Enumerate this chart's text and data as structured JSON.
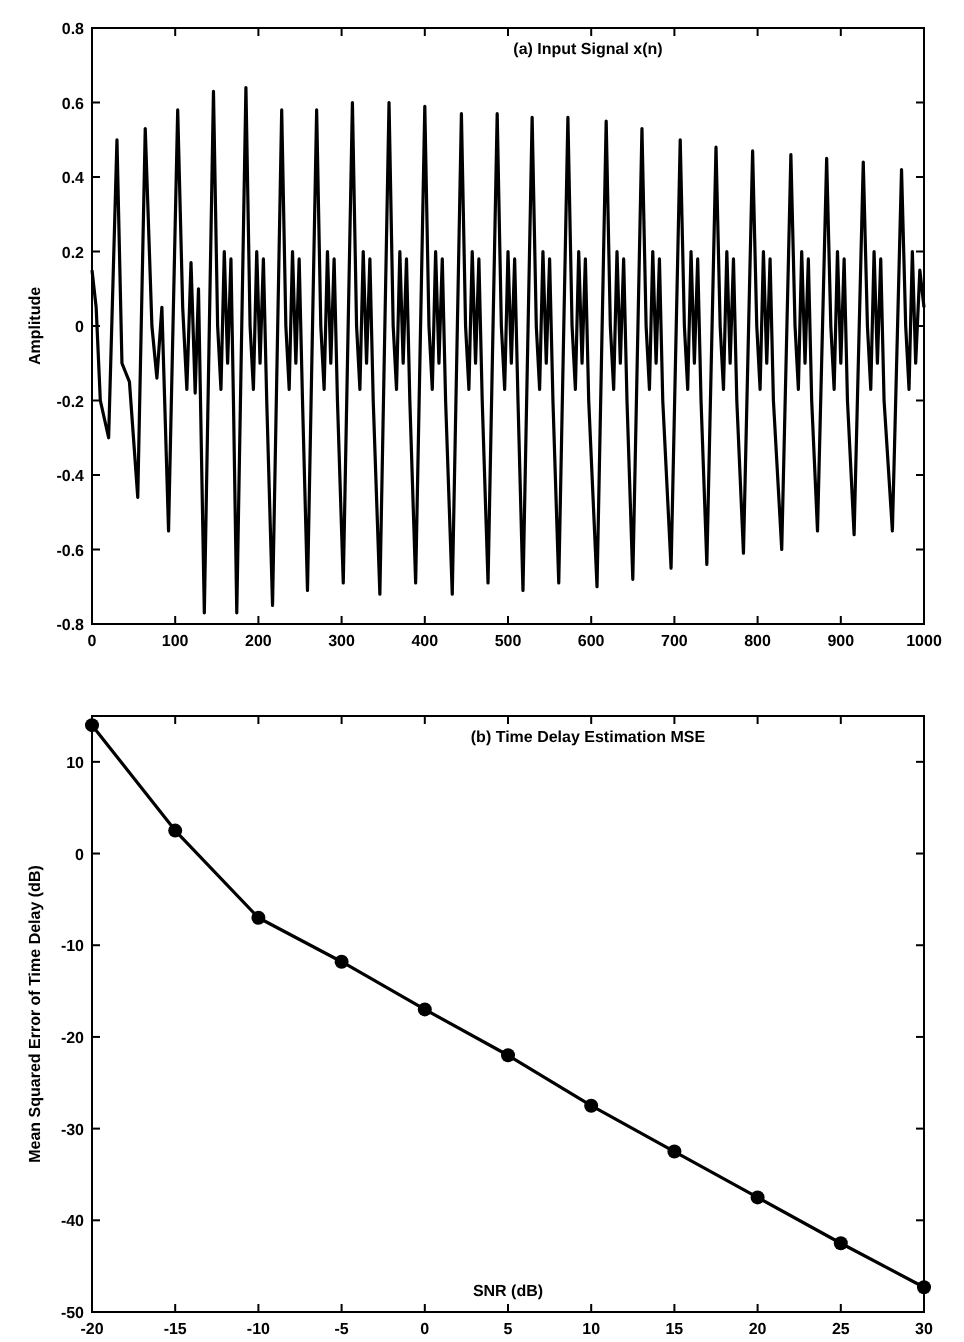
{
  "chart_data": [
    {
      "type": "line",
      "title": "(a) Input Signal x(n)",
      "ylabel": "Amplitude",
      "xlim": [
        0,
        1000
      ],
      "ylim": [
        -0.8,
        0.8
      ],
      "xticks": [
        0,
        100,
        200,
        300,
        400,
        500,
        600,
        700,
        800,
        900,
        1000
      ],
      "yticks": [
        -0.8,
        -0.6,
        -0.4,
        -0.2,
        0,
        0.2,
        0.4,
        0.6,
        0.8
      ],
      "marker": "none",
      "series": [
        {
          "color": "#000000",
          "x": [
            0,
            5,
            10,
            20,
            30,
            36,
            45,
            55,
            64,
            72,
            78,
            84,
            92,
            103,
            109,
            114,
            119,
            124,
            128,
            135,
            146,
            151,
            155,
            159,
            163,
            167,
            170,
            174,
            185,
            190,
            194,
            198,
            202,
            206,
            210,
            217,
            228,
            233,
            237,
            241,
            245,
            249,
            253,
            259,
            270,
            275,
            279,
            283,
            287,
            291,
            295,
            302,
            313,
            318,
            322,
            326,
            330,
            334,
            338,
            346,
            357,
            362,
            366,
            370,
            374,
            378,
            382,
            389,
            400,
            405,
            409,
            413,
            417,
            421,
            425,
            433,
            444,
            449,
            453,
            457,
            461,
            465,
            469,
            476,
            487,
            492,
            496,
            500,
            504,
            508,
            512,
            518,
            529,
            534,
            538,
            542,
            546,
            550,
            554,
            561,
            572,
            577,
            581,
            585,
            589,
            593,
            597,
            607,
            618,
            623,
            627,
            631,
            635,
            639,
            643,
            650,
            661,
            666,
            670,
            674,
            678,
            682,
            686,
            696,
            707,
            712,
            716,
            720,
            724,
            728,
            732,
            739,
            750,
            755,
            759,
            763,
            767,
            771,
            775,
            783,
            794,
            799,
            803,
            807,
            811,
            815,
            819,
            829,
            840,
            845,
            849,
            853,
            857,
            861,
            865,
            872,
            883,
            888,
            892,
            896,
            900,
            904,
            908,
            916,
            927,
            932,
            936,
            940,
            944,
            948,
            952,
            962,
            973,
            978,
            982,
            986,
            990,
            995,
            1000
          ],
          "values": [
            0.15,
            0.05,
            -0.2,
            -0.3,
            0.5,
            -0.1,
            -0.15,
            -0.46,
            0.53,
            0.0,
            -0.14,
            0.05,
            -0.55,
            0.58,
            0.05,
            -0.17,
            0.17,
            -0.18,
            0.1,
            -0.77,
            0.63,
            0.0,
            -0.17,
            0.2,
            -0.1,
            0.18,
            -0.2,
            -0.77,
            0.64,
            0.0,
            -0.17,
            0.2,
            -0.1,
            0.18,
            -0.2,
            -0.75,
            0.58,
            0.0,
            -0.17,
            0.2,
            -0.1,
            0.18,
            -0.2,
            -0.71,
            0.58,
            0.0,
            -0.17,
            0.2,
            -0.1,
            0.18,
            -0.2,
            -0.69,
            0.6,
            0.0,
            -0.17,
            0.2,
            -0.1,
            0.18,
            -0.2,
            -0.72,
            0.6,
            0.0,
            -0.17,
            0.2,
            -0.1,
            0.18,
            -0.2,
            -0.69,
            0.59,
            0.0,
            -0.17,
            0.2,
            -0.1,
            0.18,
            -0.2,
            -0.72,
            0.57,
            0.0,
            -0.17,
            0.2,
            -0.1,
            0.18,
            -0.2,
            -0.69,
            0.57,
            0.0,
            -0.17,
            0.2,
            -0.1,
            0.18,
            -0.2,
            -0.71,
            0.56,
            0.0,
            -0.17,
            0.2,
            -0.1,
            0.18,
            -0.2,
            -0.69,
            0.56,
            0.0,
            -0.17,
            0.2,
            -0.1,
            0.18,
            -0.2,
            -0.7,
            0.55,
            0.0,
            -0.17,
            0.2,
            -0.1,
            0.18,
            -0.2,
            -0.68,
            0.53,
            0.0,
            -0.17,
            0.2,
            -0.1,
            0.18,
            -0.2,
            -0.65,
            0.5,
            0.0,
            -0.17,
            0.2,
            -0.1,
            0.18,
            -0.2,
            -0.64,
            0.48,
            0.0,
            -0.17,
            0.2,
            -0.1,
            0.18,
            -0.2,
            -0.61,
            0.47,
            0.0,
            -0.17,
            0.2,
            -0.1,
            0.18,
            -0.2,
            -0.6,
            0.46,
            0.0,
            -0.17,
            0.2,
            -0.1,
            0.18,
            -0.2,
            -0.55,
            0.45,
            0.0,
            -0.17,
            0.2,
            -0.1,
            0.18,
            -0.2,
            -0.56,
            0.44,
            0.0,
            -0.17,
            0.2,
            -0.1,
            0.18,
            -0.2,
            -0.55,
            0.42,
            0.0,
            -0.17,
            0.2,
            -0.1,
            0.15,
            0.05
          ]
        }
      ]
    },
    {
      "type": "line",
      "title": "(b) Time Delay Estimation MSE",
      "xlabel": "SNR (dB)",
      "ylabel": "Mean Squared Error of Time Delay (dB)",
      "xlim": [
        -20,
        30
      ],
      "ylim": [
        -50,
        15
      ],
      "xticks": [
        -20,
        -15,
        -10,
        -5,
        0,
        5,
        10,
        15,
        20,
        25,
        30
      ],
      "yticks": [
        -50,
        -40,
        -30,
        -20,
        -10,
        0,
        10
      ],
      "marker": "circle",
      "series": [
        {
          "color": "#000000",
          "x": [
            -20,
            -15,
            -10,
            -5,
            0,
            5,
            10,
            15,
            20,
            25,
            30
          ],
          "values": [
            14,
            2.5,
            -7,
            -11.8,
            -17,
            -22,
            -27.5,
            -32.5,
            -37.5,
            -42.5,
            -47.3
          ]
        }
      ]
    }
  ]
}
